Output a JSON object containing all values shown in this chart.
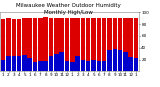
{
  "title": "Milwaukee Weather Outdoor Humidity",
  "subtitle": "Monthly High/Low",
  "months": [
    "1",
    "2",
    "3",
    "4",
    "5",
    "1",
    "6",
    "7",
    "8",
    "9",
    "10",
    "11",
    "12",
    "1",
    "2",
    "3",
    "4",
    "5",
    "6",
    "7",
    "8",
    "9",
    "10",
    "11",
    "12",
    "1"
  ],
  "high_values": [
    88,
    90,
    88,
    88,
    91,
    90,
    90,
    91,
    92,
    90,
    90,
    90,
    90,
    91,
    90,
    90,
    90,
    91,
    90,
    91,
    91,
    90,
    90,
    90,
    90,
    90
  ],
  "low_values": [
    20,
    26,
    26,
    26,
    28,
    22,
    16,
    18,
    18,
    26,
    30,
    32,
    18,
    16,
    26,
    20,
    18,
    20,
    18,
    18,
    36,
    38,
    36,
    32,
    24,
    22
  ],
  "high_color": "#DD0000",
  "low_color": "#0000CC",
  "bg_color": "#ffffff",
  "ylim": [
    0,
    100
  ],
  "title_fontsize": 4.0,
  "tick_fontsize": 3.0,
  "bar_width": 0.85,
  "yticks": [
    20,
    40,
    60,
    80,
    100
  ]
}
